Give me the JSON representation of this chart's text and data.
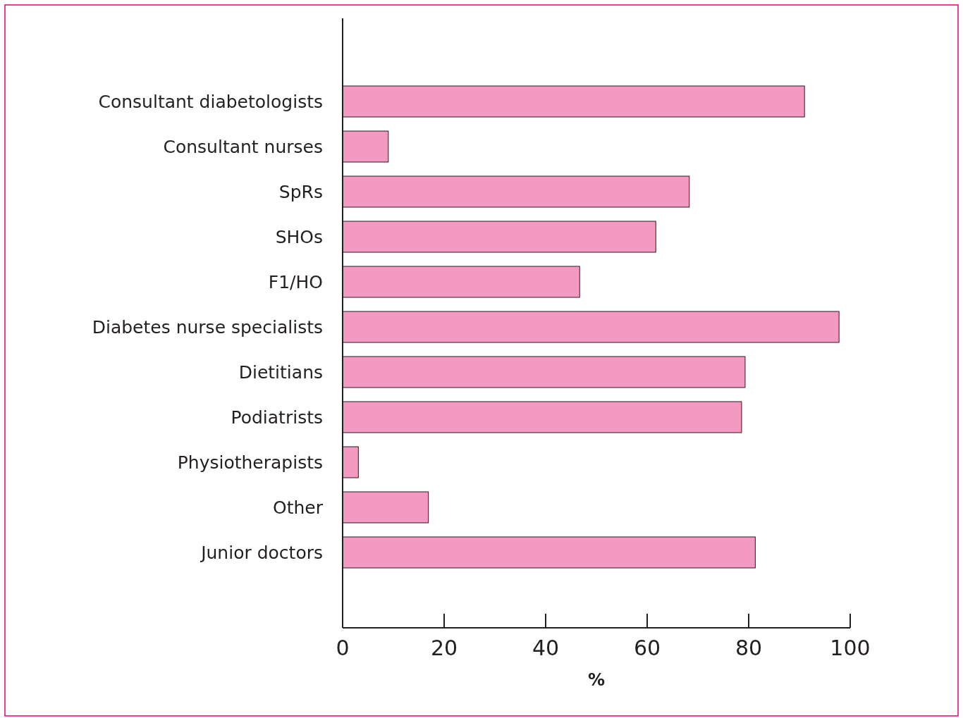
{
  "chart_data": {
    "type": "bar",
    "orientation": "horizontal",
    "xlabel": "%",
    "categories": [
      "Consultant diabetologists",
      "Consultant nurses",
      "SpRs",
      "SHOs",
      "F1/HO",
      "Diabetes nurse specialists",
      "Dietitians",
      "Podiatrists",
      "Physiotherapists",
      "Other",
      "Junior doctors"
    ],
    "values": [
      91,
      9,
      68.3,
      61.7,
      46.7,
      97.8,
      79.3,
      78.6,
      3.1,
      16.9,
      81.3
    ],
    "color": "#f49ac1",
    "xlim": [
      0,
      100
    ],
    "xticks": [
      0,
      20,
      40,
      60,
      80,
      100
    ],
    "grid": false
  }
}
